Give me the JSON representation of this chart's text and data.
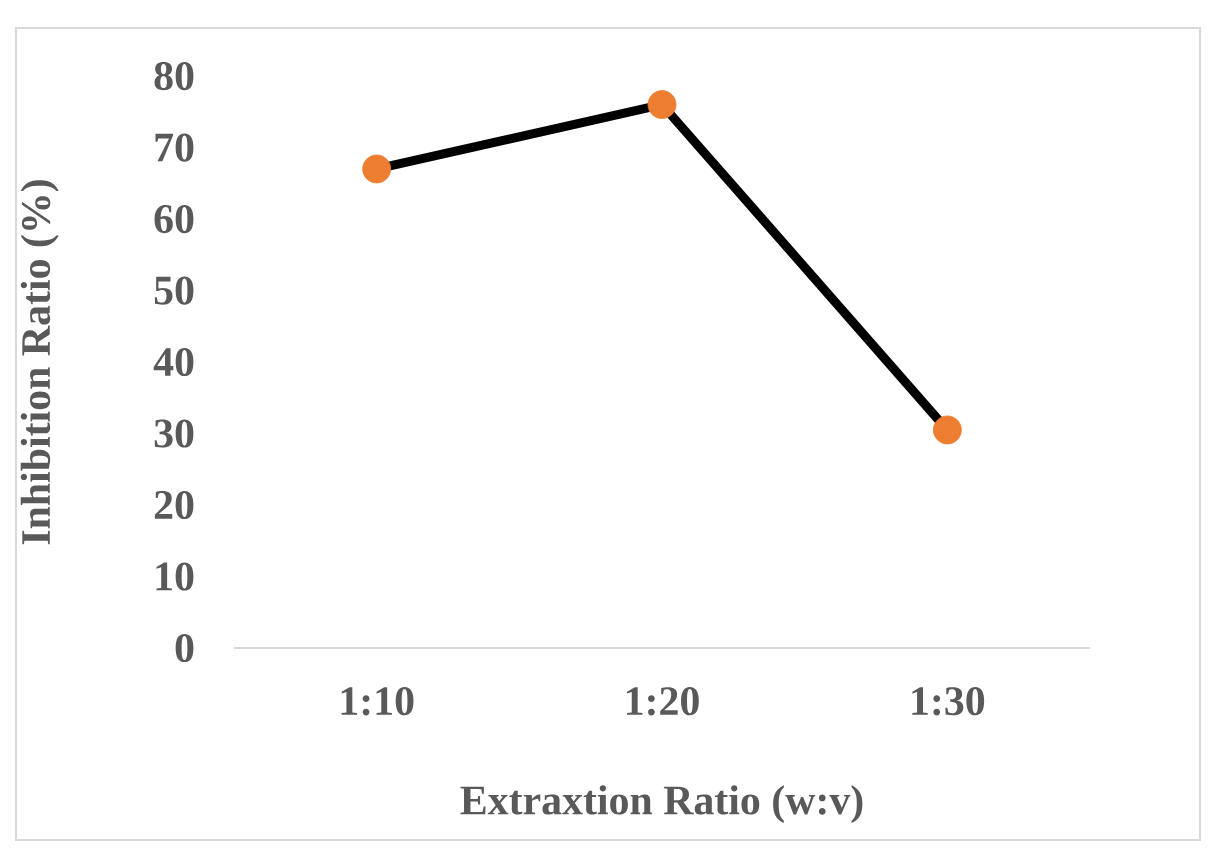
{
  "chart_data": {
    "type": "line",
    "xlabel": "Extraxtion Ratio (w:v)",
    "ylabel": "Inhibition Ratio (%)",
    "categories": [
      "1:10",
      "1:20",
      "1:30"
    ],
    "series": [
      {
        "color": "#000000",
        "colors": [
          "#ed7d31",
          "#ed7d31",
          "#ed7d31"
        ],
        "values": [
          67,
          76,
          30.5
        ]
      }
    ],
    "ylim": [
      0,
      80
    ],
    "yticks": [
      0,
      10,
      20,
      30,
      40,
      50,
      60,
      70,
      80
    ],
    "grid": false,
    "marker": "circle",
    "line_style": "solid"
  }
}
